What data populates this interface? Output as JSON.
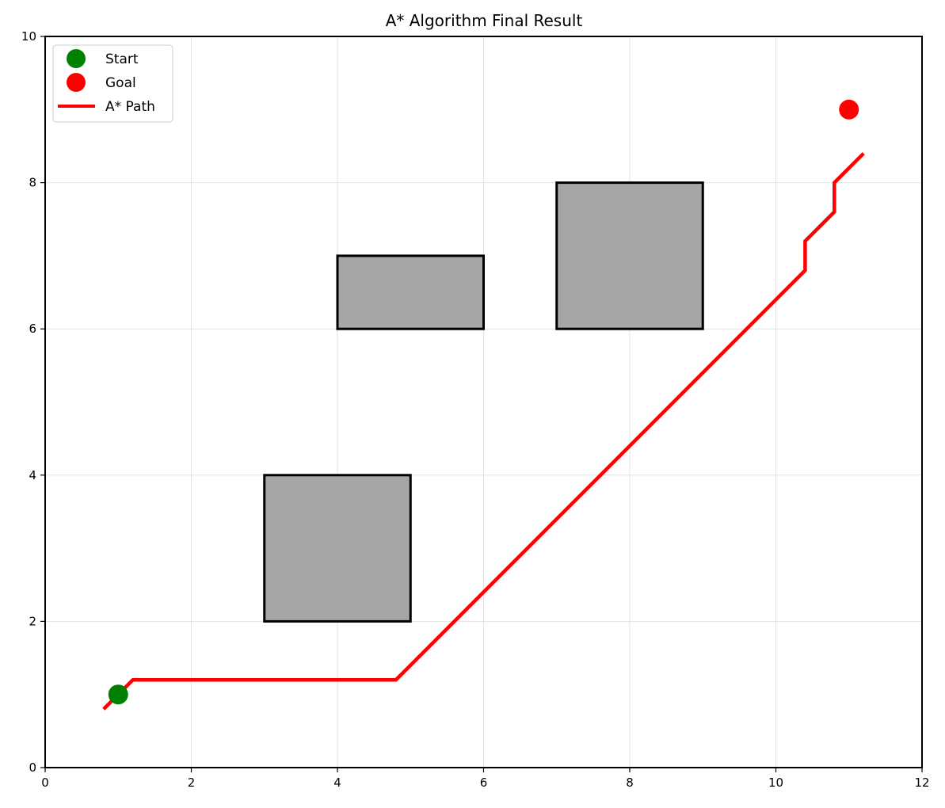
{
  "chart_data": {
    "type": "scatter",
    "title": "A* Algorithm Final Result",
    "xlabel": "",
    "ylabel": "",
    "xlim": [
      0,
      12
    ],
    "ylim": [
      0,
      10
    ],
    "x_ticks": [
      0,
      2,
      4,
      6,
      8,
      10,
      12
    ],
    "y_ticks": [
      0,
      2,
      4,
      6,
      8,
      10
    ],
    "grid": true,
    "legend_position": "top-left",
    "obstacles": [
      {
        "x": 3,
        "y": 2,
        "width": 2,
        "height": 2
      },
      {
        "x": 4,
        "y": 6,
        "width": 2,
        "height": 1
      },
      {
        "x": 7,
        "y": 6,
        "width": 2,
        "height": 2
      }
    ],
    "obstacle_fill": "#a6a6a6",
    "obstacle_stroke": "#000000",
    "series": [
      {
        "name": "Start",
        "kind": "point",
        "color": "#008000",
        "points": [
          [
            1,
            1
          ]
        ]
      },
      {
        "name": "Goal",
        "kind": "point",
        "color": "#ff0000",
        "points": [
          [
            11,
            9
          ]
        ]
      },
      {
        "name": "A* Path",
        "kind": "line",
        "color": "#ff0000",
        "points": [
          [
            0.8,
            0.8
          ],
          [
            1.2,
            1.2
          ],
          [
            4.8,
            1.2
          ],
          [
            10.4,
            6.8
          ],
          [
            10.4,
            7.2
          ],
          [
            10.8,
            7.6
          ],
          [
            10.8,
            8.0
          ],
          [
            11.2,
            8.4
          ]
        ]
      }
    ]
  }
}
